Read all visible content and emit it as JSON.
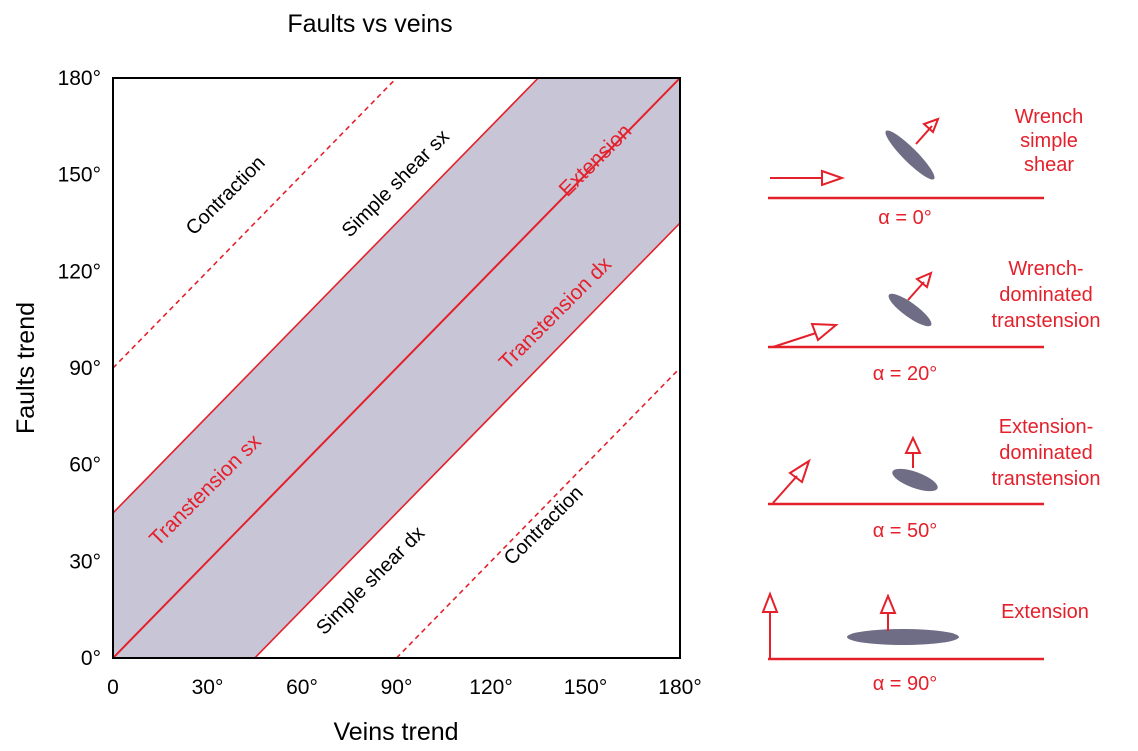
{
  "chart": {
    "title": "Faults vs veins",
    "xlabel": "Veins trend",
    "ylabel": "Faults trend",
    "x_ticks": [
      "0",
      "30°",
      "60°",
      "90°",
      "120°",
      "150°",
      "180°"
    ],
    "y_ticks": [
      "0°",
      "30°",
      "60°",
      "90°",
      "120°",
      "150°",
      "180°"
    ],
    "x_tick_values": [
      0,
      30,
      60,
      90,
      120,
      150,
      180
    ],
    "y_tick_values": [
      0,
      30,
      60,
      90,
      120,
      150,
      180
    ],
    "xlim": [
      0,
      180
    ],
    "ylim": [
      0,
      180
    ]
  },
  "regions": {
    "contraction_upper": "Contraction",
    "simple_shear_sx": "Simple shear sx",
    "extension": "Extension",
    "transtension_dx": "Transtension dx",
    "transtension_sx": "Transtension sx",
    "simple_shear_dx": "Simple shear dx",
    "contraction_lower": "Contraction"
  },
  "lines": {
    "band_offset_deg": 45,
    "dashed_offset_deg": 90,
    "shaded_band": "between y = x - 45° and y = x + 45°"
  },
  "kinematics": [
    {
      "label_lines": [
        "Wrench",
        "simple",
        "shear"
      ],
      "alpha": "α = 0°"
    },
    {
      "label_lines": [
        "Wrench-",
        "dominated",
        "transtension"
      ],
      "alpha": "α = 20°"
    },
    {
      "label_lines": [
        "Extension-",
        "dominated",
        "transtension"
      ],
      "alpha": "α = 50°"
    },
    {
      "label_lines": [
        "Extension"
      ],
      "alpha": "α = 90°"
    }
  ],
  "colors": {
    "red": "#e4202b",
    "band_fill": "#c8c5d6",
    "ellipse": "#6f6d85",
    "axis": "#000000"
  }
}
